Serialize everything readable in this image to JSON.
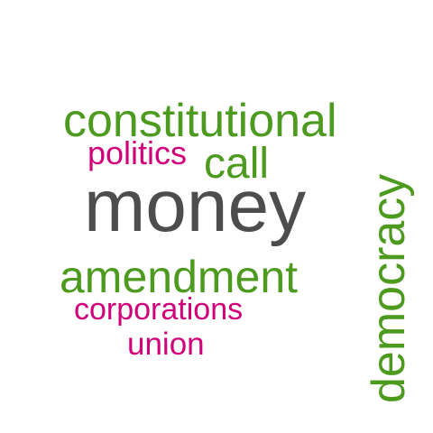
{
  "colors": {
    "background": "#ffffff",
    "green": "#4c9a1e",
    "magenta": "#d0007a",
    "gray": "#4d4d4d"
  },
  "words": {
    "constitutional": {
      "text": "constitutional",
      "color": "#4c9a1e"
    },
    "politics": {
      "text": "politics",
      "color": "#d0007a"
    },
    "call": {
      "text": "call",
      "color": "#4c9a1e"
    },
    "money": {
      "text": "money",
      "color": "#4d4d4d"
    },
    "amendment": {
      "text": "amendment",
      "color": "#4c9a1e"
    },
    "corporations": {
      "text": "corporations",
      "color": "#d0007a"
    },
    "union": {
      "text": "union",
      "color": "#d0007a"
    },
    "democracy": {
      "text": "democracy",
      "color": "#4c9a1e"
    }
  }
}
